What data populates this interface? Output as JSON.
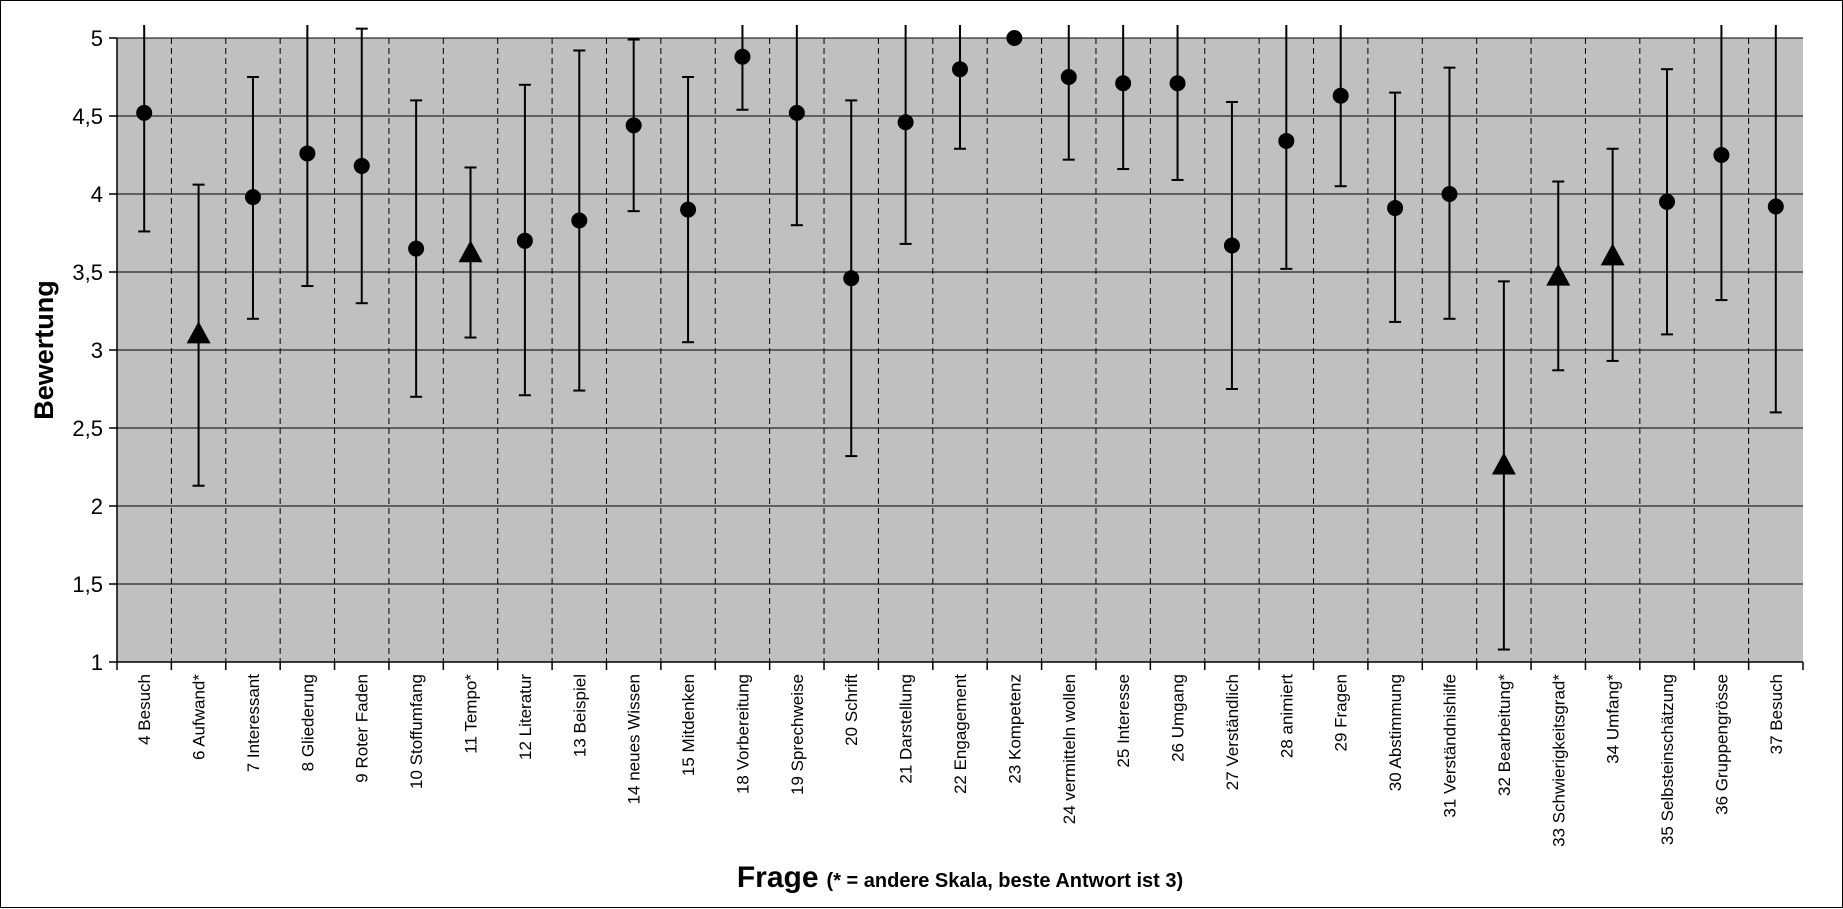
{
  "chart_data": {
    "type": "scatter",
    "ylabel": "Bewertung",
    "xlabel": {
      "main": "Frage",
      "note": "(* = andere Skala, beste Antwort ist 3)"
    },
    "ylim": [
      1,
      5
    ],
    "yticks": [
      "1",
      "1,5",
      "2",
      "2,5",
      "3",
      "3,5",
      "4",
      "4,5",
      "5"
    ],
    "ytick_values": [
      1,
      1.5,
      2,
      2.5,
      3,
      3.5,
      4,
      4.5,
      5
    ],
    "grid": {
      "horizontal": "solid",
      "vertical": "dashed"
    },
    "colors": {
      "plot_background": "#c0c0c0",
      "marker": "#000000"
    },
    "categories": [
      "4 Besuch",
      "6 Aufwand*",
      "7 Interessant",
      "8 Gliederung",
      "9 Roter Faden",
      "10 Stoffumfang",
      "11 Tempo*",
      "12 Literatur",
      "13 Beispiel",
      "14 neues Wissen",
      "15 Mitdenken",
      "18 Vorbereitung",
      "19 Sprechweise",
      "20 Schrift",
      "21 Darstellung",
      "22 Engagement",
      "23 Kompetenz",
      "24 vermitteln wollen",
      "25 Interesse",
      "26 Umgang",
      "27 Verständlich",
      "28 animiert",
      "29 Fragen",
      "30 Abstimmung",
      "31 Verständnishilfe",
      "32 Bearbeitung*",
      "33 Schwierigkeitsgrad*",
      "34 Umfang*",
      "35 Selbsteinschätzung",
      "36 Gruppengrösse",
      "37 Besuch"
    ],
    "means": [
      4.52,
      3.1,
      3.98,
      4.26,
      4.18,
      3.65,
      3.62,
      3.7,
      3.83,
      4.44,
      3.9,
      4.88,
      4.52,
      3.46,
      4.46,
      4.8,
      5.0,
      4.75,
      4.71,
      4.71,
      3.67,
      4.34,
      4.63,
      3.91,
      4.0,
      2.26,
      3.47,
      3.6,
      3.95,
      4.25,
      3.92
    ],
    "lower": [
      3.76,
      2.13,
      3.2,
      3.41,
      3.3,
      2.7,
      3.08,
      2.71,
      2.74,
      3.89,
      3.05,
      4.54,
      3.8,
      2.32,
      3.68,
      4.29,
      5.0,
      4.22,
      4.16,
      4.09,
      2.75,
      3.52,
      4.05,
      3.18,
      3.2,
      1.08,
      2.87,
      2.93,
      3.1,
      3.32,
      2.6
    ],
    "upper": [
      5.28,
      4.06,
      4.75,
      5.11,
      5.06,
      4.6,
      4.17,
      4.7,
      4.92,
      4.99,
      4.75,
      5.22,
      5.24,
      4.6,
      5.24,
      5.31,
      5.0,
      5.28,
      5.26,
      5.33,
      4.59,
      5.16,
      5.21,
      4.65,
      4.81,
      3.44,
      4.08,
      4.29,
      4.8,
      5.18,
      5.24
    ],
    "markers": [
      "circle",
      "triangle",
      "circle",
      "circle",
      "circle",
      "circle",
      "triangle",
      "circle",
      "circle",
      "circle",
      "circle",
      "circle",
      "circle",
      "circle",
      "circle",
      "circle",
      "circle",
      "circle",
      "circle",
      "circle",
      "circle",
      "circle",
      "circle",
      "circle",
      "circle",
      "triangle",
      "triangle",
      "triangle",
      "circle",
      "circle",
      "circle"
    ]
  }
}
